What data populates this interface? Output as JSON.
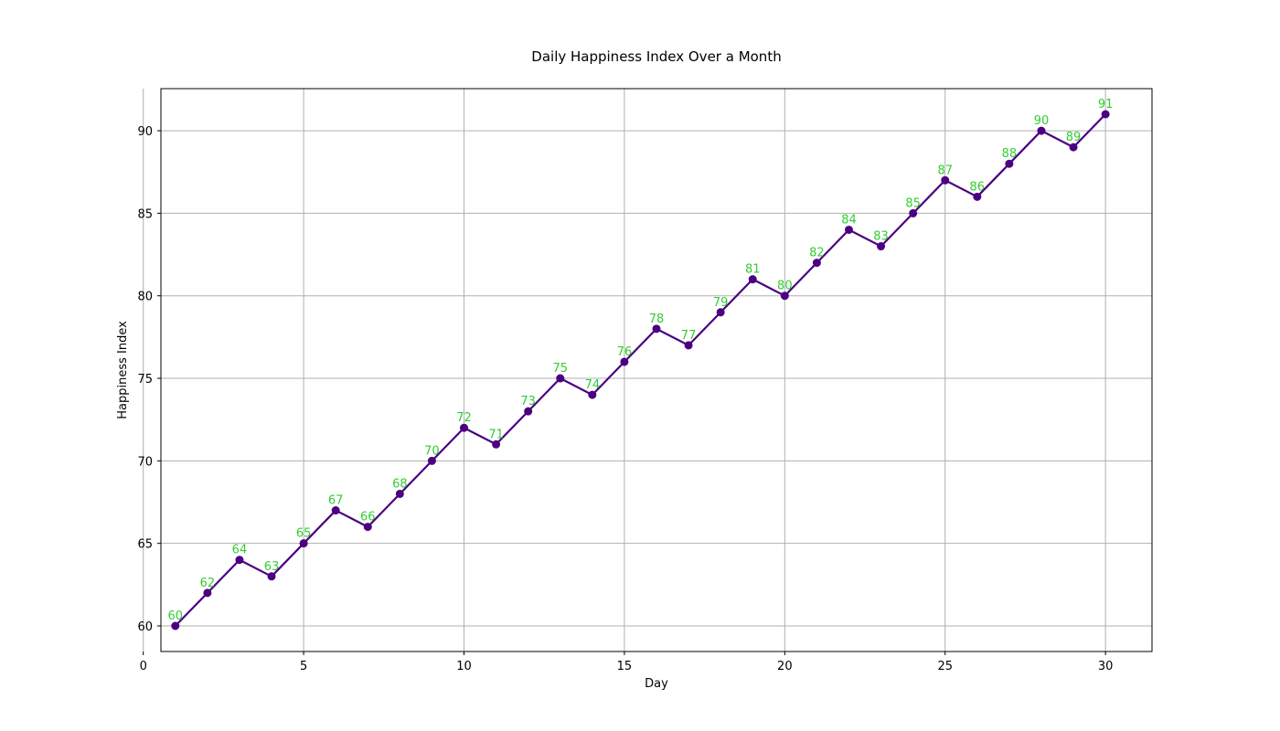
{
  "chart_data": {
    "type": "line",
    "title": "Daily Happiness Index Over a Month",
    "xlabel": "Day",
    "ylabel": "Happiness Index",
    "x": [
      1,
      2,
      3,
      4,
      5,
      6,
      7,
      8,
      9,
      10,
      11,
      12,
      13,
      14,
      15,
      16,
      17,
      18,
      19,
      20,
      21,
      22,
      23,
      24,
      25,
      26,
      27,
      28,
      29,
      30
    ],
    "series": [
      {
        "values": [
          60,
          62,
          64,
          63,
          65,
          67,
          66,
          68,
          70,
          72,
          71,
          73,
          75,
          74,
          76,
          78,
          77,
          79,
          81,
          80,
          82,
          84,
          83,
          85,
          87,
          86,
          88,
          90,
          89,
          91
        ]
      }
    ],
    "xlim": [
      0.55,
      31.45
    ],
    "ylim": [
      58.45,
      92.55
    ],
    "xticks": [
      0,
      5,
      10,
      15,
      20,
      25,
      30
    ],
    "yticks": [
      60,
      65,
      70,
      75,
      80,
      85,
      90
    ],
    "grid": true,
    "line_color": "#4b0082",
    "marker_color": "#4b0082",
    "data_label_color": "#32cd32"
  }
}
